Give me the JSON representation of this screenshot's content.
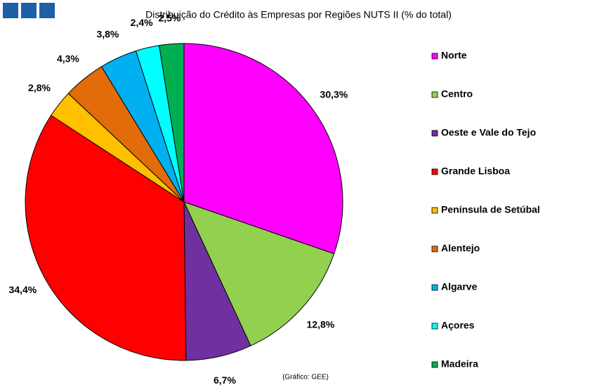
{
  "chart_data": {
    "type": "pie",
    "title": "Distribuição do Crédito às Empresas por Regiões NUTS II (% do total)",
    "note": "(Gráfico: GEE)",
    "categories": [
      "Norte",
      "Centro",
      "Oeste e Vale do Tejo",
      "Grande Lisboa",
      "Península de Setúbal",
      "Alentejo",
      "Algarve",
      "Açores",
      "Madeira"
    ],
    "values": [
      30.3,
      12.8,
      6.7,
      34.4,
      2.8,
      4.3,
      3.8,
      2.4,
      2.5
    ],
    "value_labels": [
      "30,3%",
      "12,8%",
      "6,7%",
      "34,4%",
      "2,8%",
      "4,3%",
      "3,8%",
      "2,4%",
      "2,5%"
    ],
    "colors": [
      "#ff00ff",
      "#92d050",
      "#7030a0",
      "#ff0000",
      "#ffc000",
      "#e26b0a",
      "#00b0f0",
      "#00ffff",
      "#00b050"
    ],
    "legend": "right"
  }
}
